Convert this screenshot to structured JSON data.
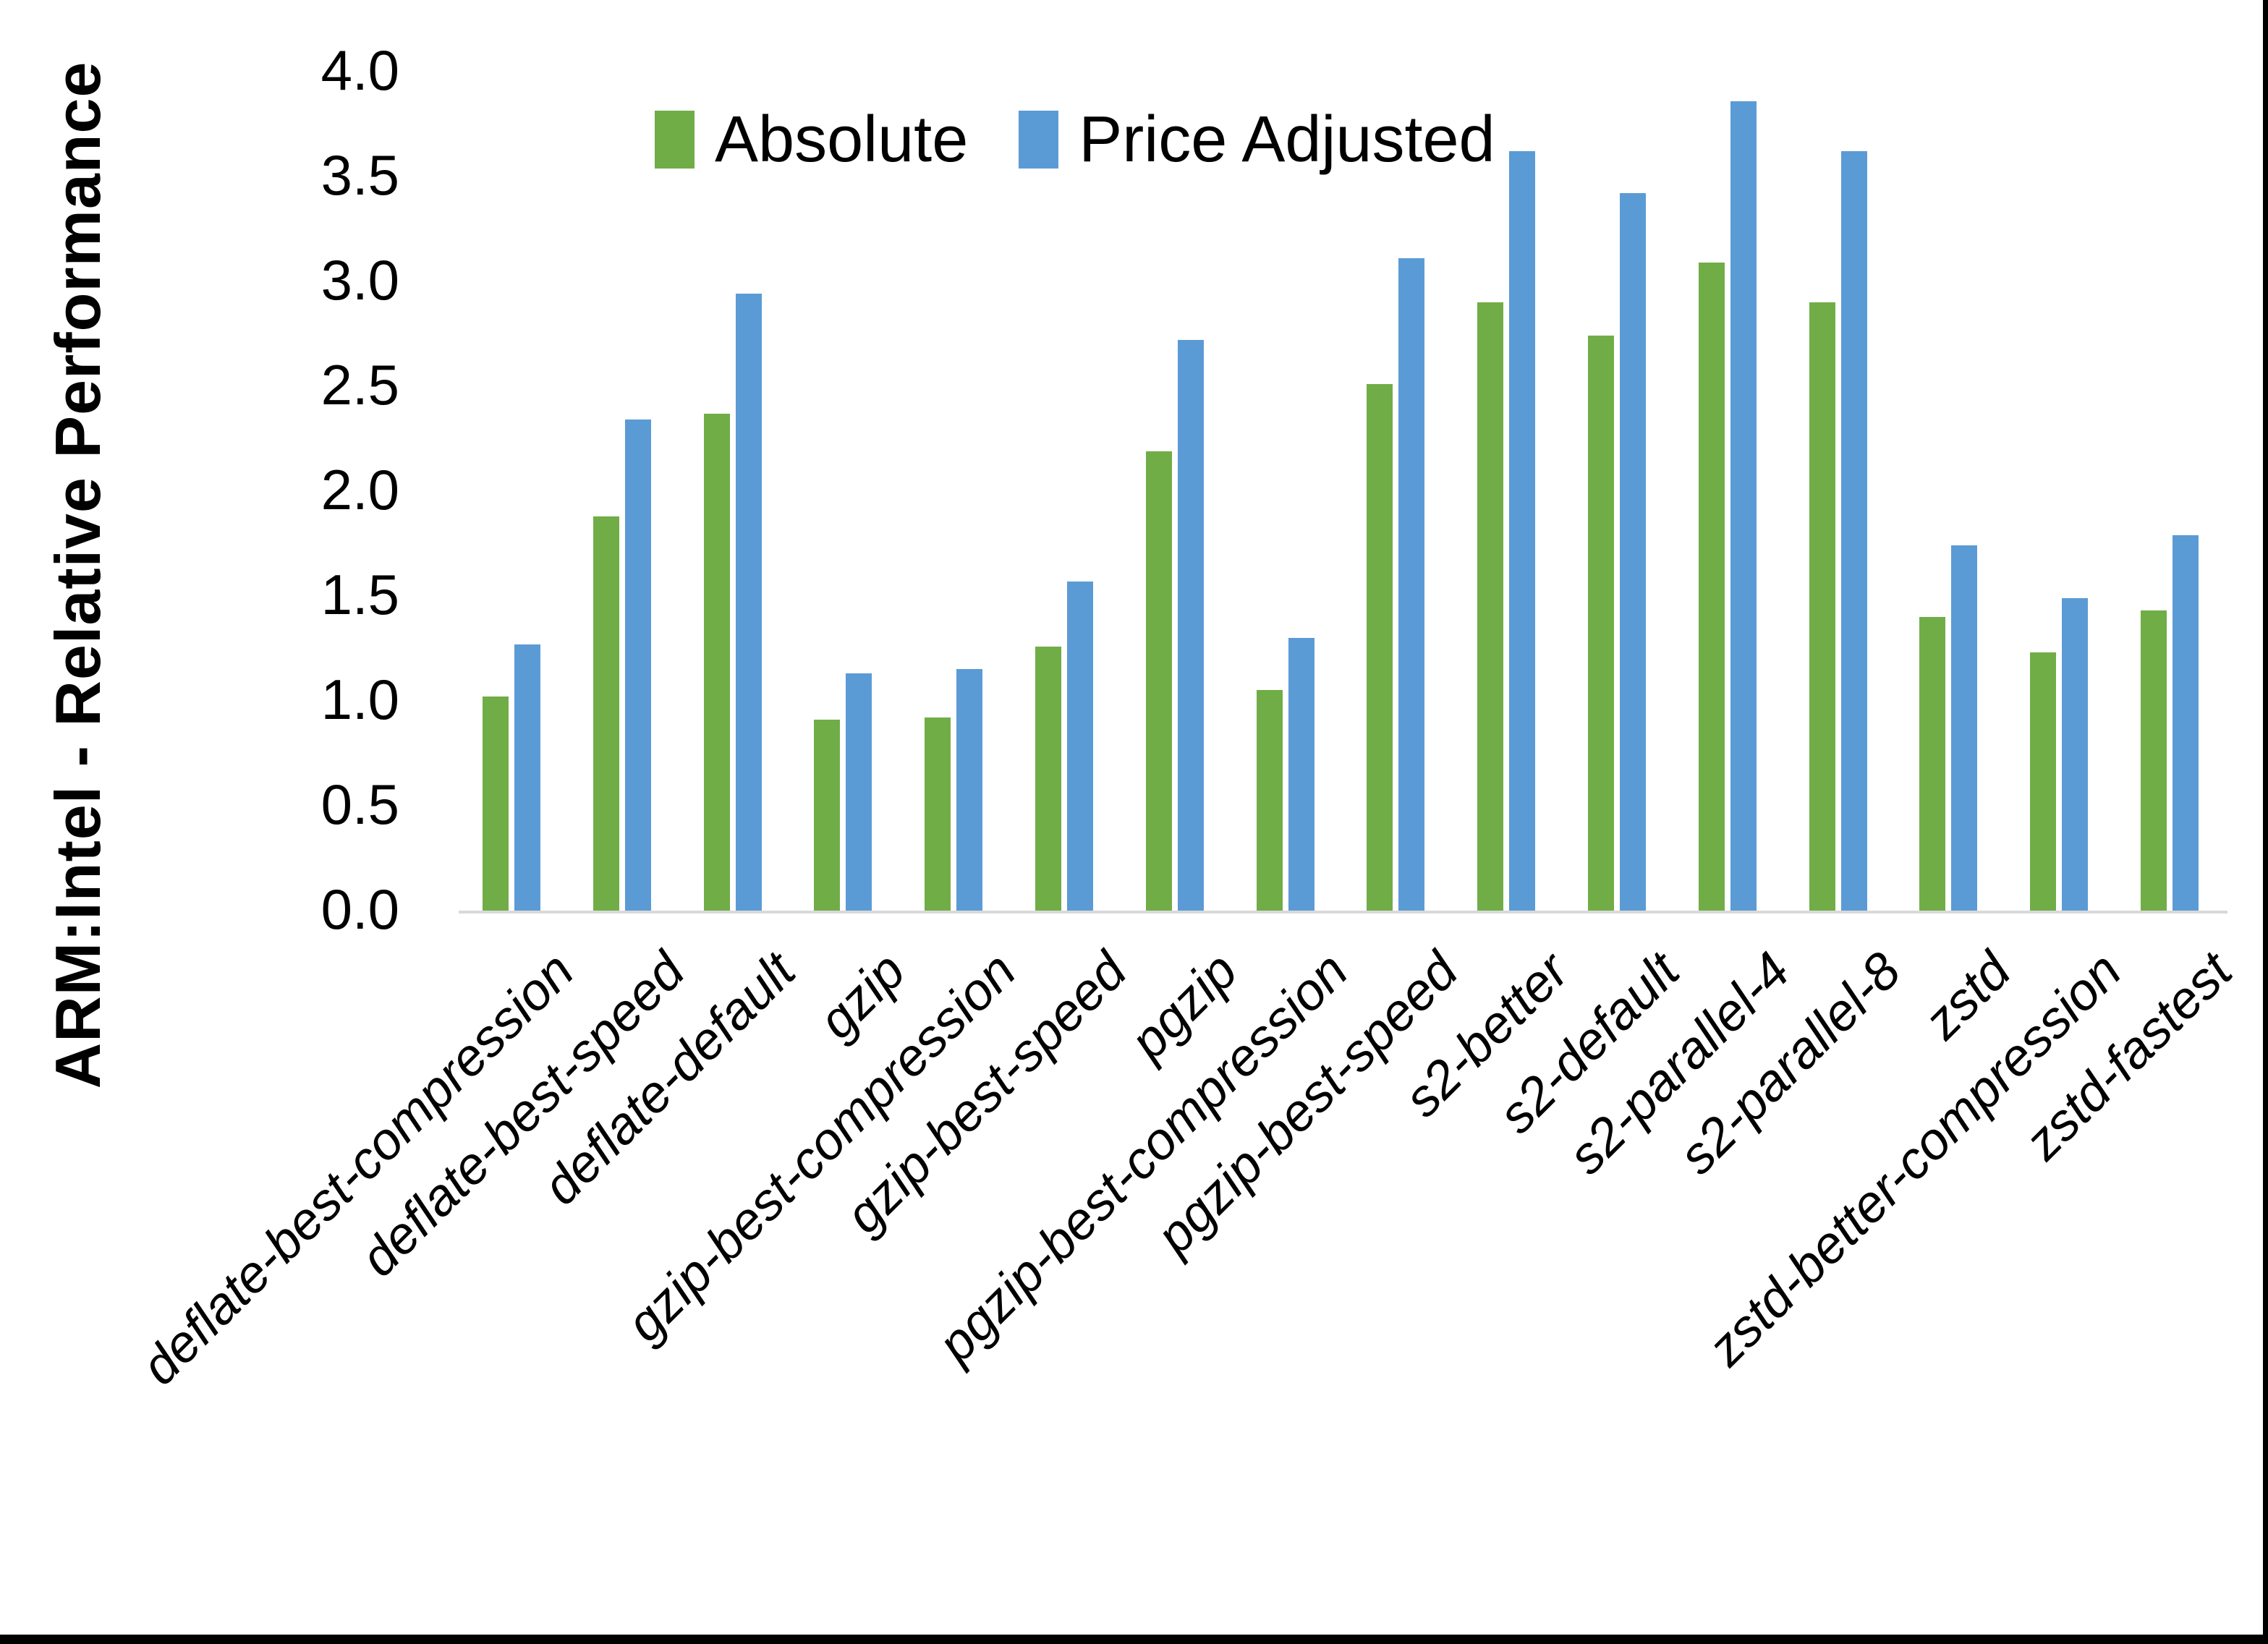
{
  "chart_data": {
    "type": "bar",
    "title": "",
    "xlabel": "",
    "ylabel": "ARM:Intel - Relative Performance",
    "ylim": [
      0.0,
      4.0
    ],
    "y_tick_step": 0.5,
    "y_ticks": [
      0.0,
      0.5,
      1.0,
      1.5,
      2.0,
      2.5,
      3.0,
      3.5,
      4.0
    ],
    "grid": false,
    "legend_position": "top-center",
    "categories": [
      "deflate-best-compression",
      "deflate-best-speed",
      "deflate-default",
      "gzip",
      "gzip-best-compression",
      "gzip-best-speed",
      "pgzip",
      "pgzip-best-compression",
      "pgzip-best-speed",
      "s2-better",
      "s2-default",
      "s2-parallel-4",
      "s2-parallel-8",
      "zstd",
      "zstd-better-compression",
      "zstd-fastest"
    ],
    "series": [
      {
        "name": "Absolute",
        "color": "#70AD47",
        "values": [
          1.02,
          1.88,
          2.37,
          0.91,
          0.92,
          1.26,
          2.19,
          1.05,
          2.51,
          2.9,
          2.74,
          3.09,
          2.9,
          1.4,
          1.23,
          1.43
        ]
      },
      {
        "name": "Price Adjusted",
        "color": "#5B9BD5",
        "values": [
          1.27,
          2.34,
          2.94,
          1.13,
          1.15,
          1.57,
          2.72,
          1.3,
          3.11,
          3.62,
          3.42,
          3.86,
          3.62,
          1.74,
          1.49,
          1.79
        ]
      }
    ]
  },
  "legend": {
    "items": [
      {
        "label": "Absolute",
        "color": "#70AD47"
      },
      {
        "label": "Price Adjusted",
        "color": "#5B9BD5"
      }
    ]
  },
  "colors": {
    "background": "#FFFFFF",
    "axis_line": "#D9D9D9",
    "text": "#000000",
    "frame": "#000000"
  }
}
